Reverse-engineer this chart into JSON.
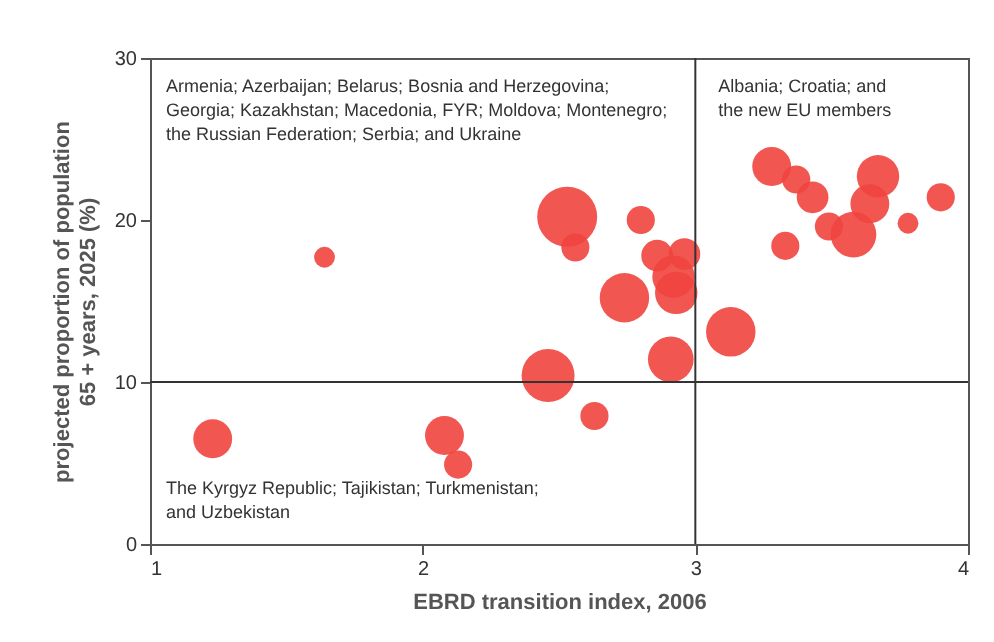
{
  "chart_data": {
    "type": "bubble",
    "xlabel": "EBRD transition index, 2006",
    "ylabel": "projected proportion of population\n65 + years, 2025 (%)",
    "x": [
      1.23,
      1.64,
      2.08,
      2.13,
      2.46,
      2.53,
      2.56,
      2.8,
      2.63,
      2.74,
      2.91,
      2.86,
      2.92,
      2.93,
      2.96,
      3.13,
      3.28,
      3.37,
      3.43,
      3.33,
      3.49,
      3.58,
      3.64,
      3.67,
      3.78,
      3.9
    ],
    "values": [
      6.5,
      17.7,
      6.7,
      4.9,
      10.4,
      20.2,
      18.3,
      20.0,
      7.9,
      15.2,
      11.4,
      17.8,
      16.5,
      15.5,
      17.9,
      13.1,
      23.3,
      22.5,
      21.4,
      18.4,
      19.6,
      19.1,
      21.0,
      22.7,
      19.8,
      21.4
    ],
    "sizes": [
      0.42,
      0.12,
      0.42,
      0.22,
      0.78,
      1,
      0.22,
      0.22,
      0.22,
      0.68,
      0.58,
      0.28,
      0.5,
      0.5,
      0.28,
      0.68,
      0.42,
      0.22,
      0.28,
      0.22,
      0.22,
      0.58,
      0.42,
      0.5,
      0.12,
      0.22
    ],
    "color": "#f0443e",
    "xlim": [
      1,
      4
    ],
    "xticks": [
      1,
      2,
      3,
      4
    ],
    "ylim": [
      0,
      30
    ],
    "yticks": [
      0,
      10,
      20,
      30
    ],
    "grid": false,
    "ref_lines": [
      {
        "axis": "x",
        "value": 3,
        "color": "#333333"
      },
      {
        "axis": "y",
        "value": 10,
        "color": "#333333"
      }
    ],
    "annotations": [
      "Armenia; Azerbaijan; Belarus; Bosnia and Herzegovina;\nGeorgia; Kazakhstan; Macedonia, FYR; Moldova; Montenegro;\nthe Russian Federation; Serbia; and Ukraine",
      "Albania; Croatia; and\nthe new EU members",
      "The Kyrgyz Republic; Tajikistan; Turkmenistan;\nand Uzbekistan"
    ]
  }
}
